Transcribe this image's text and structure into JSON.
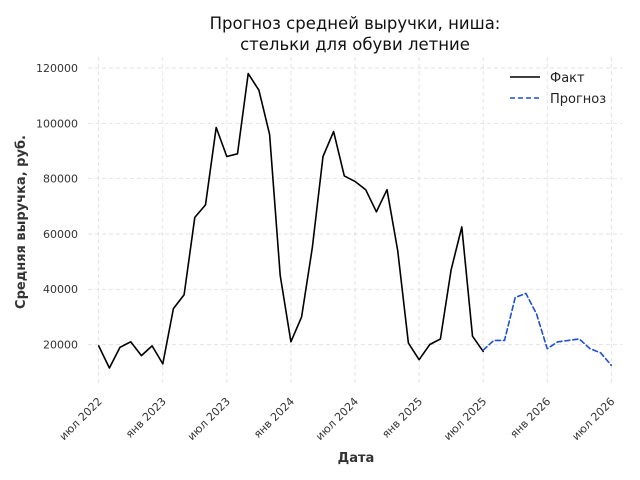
{
  "chart_data": {
    "type": "line",
    "title": [
      "Прогноз средней выручки, ниша:",
      "стельки для обуви летние"
    ],
    "xlabel": "Дата",
    "ylabel": "Средняя выручка, руб.",
    "xlim": [
      "2022-06",
      "2026-08"
    ],
    "ylim": [
      5000,
      124000
    ],
    "yticks": [
      20000,
      40000,
      60000,
      80000,
      100000,
      120000
    ],
    "xticks": [
      {
        "date": "2022-07",
        "label": "июл 2022"
      },
      {
        "date": "2023-01",
        "label": "янв 2023"
      },
      {
        "date": "2023-07",
        "label": "июл 2023"
      },
      {
        "date": "2024-01",
        "label": "янв 2024"
      },
      {
        "date": "2024-07",
        "label": "июл 2024"
      },
      {
        "date": "2025-01",
        "label": "янв 2025"
      },
      {
        "date": "2025-07",
        "label": "июл 2025"
      },
      {
        "date": "2026-01",
        "label": "янв 2026"
      },
      {
        "date": "2026-07",
        "label": "июл 2026"
      }
    ],
    "grid": true,
    "legend_position": "top-right",
    "series": [
      {
        "name": "Факт",
        "color": "#000000",
        "style": "solid",
        "points": [
          [
            "2022-07",
            19500
          ],
          [
            "2022-08",
            11500
          ],
          [
            "2022-09",
            19000
          ],
          [
            "2022-10",
            21000
          ],
          [
            "2022-11",
            16000
          ],
          [
            "2022-12",
            19500
          ],
          [
            "2023-01",
            13000
          ],
          [
            "2023-02",
            33000
          ],
          [
            "2023-03",
            38000
          ],
          [
            "2023-04",
            66000
          ],
          [
            "2023-05",
            70500
          ],
          [
            "2023-06",
            98500
          ],
          [
            "2023-07",
            88000
          ],
          [
            "2023-08",
            89000
          ],
          [
            "2023-09",
            118000
          ],
          [
            "2023-10",
            112000
          ],
          [
            "2023-11",
            96000
          ],
          [
            "2023-12",
            45000
          ],
          [
            "2024-01",
            21000
          ],
          [
            "2024-02",
            30000
          ],
          [
            "2024-03",
            55000
          ],
          [
            "2024-04",
            88000
          ],
          [
            "2024-05",
            97000
          ],
          [
            "2024-06",
            81000
          ],
          [
            "2024-07",
            79000
          ],
          [
            "2024-08",
            76000
          ],
          [
            "2024-09",
            68000
          ],
          [
            "2024-10",
            76000
          ],
          [
            "2024-11",
            54000
          ],
          [
            "2024-12",
            20500
          ],
          [
            "2025-01",
            14500
          ],
          [
            "2025-02",
            20000
          ],
          [
            "2025-03",
            22000
          ],
          [
            "2025-04",
            47000
          ],
          [
            "2025-05",
            62500
          ],
          [
            "2025-06",
            23000
          ],
          [
            "2025-07",
            17500
          ]
        ]
      },
      {
        "name": "Прогноз",
        "color": "#1f4fd1",
        "style": "dashed",
        "points": [
          [
            "2025-07",
            18000
          ],
          [
            "2025-08",
            21500
          ],
          [
            "2025-09",
            21500
          ],
          [
            "2025-10",
            37000
          ],
          [
            "2025-11",
            38500
          ],
          [
            "2025-12",
            31000
          ],
          [
            "2026-01",
            18500
          ],
          [
            "2026-02",
            21000
          ],
          [
            "2026-03",
            21500
          ],
          [
            "2026-04",
            22000
          ],
          [
            "2026-05",
            18500
          ],
          [
            "2026-06",
            17000
          ],
          [
            "2026-07",
            12500
          ]
        ]
      }
    ]
  }
}
